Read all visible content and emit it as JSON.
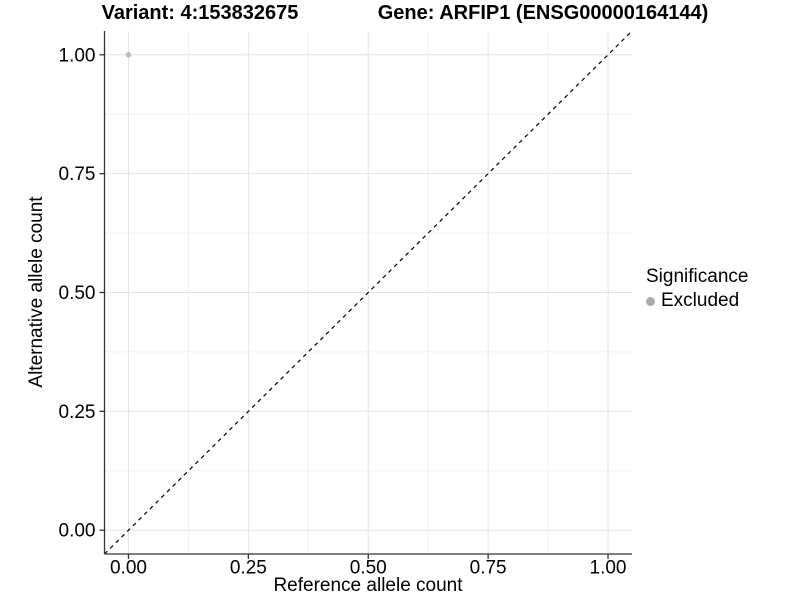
{
  "chart_data": {
    "type": "scatter",
    "title_left": "Variant: 4:153832675",
    "title_right": "Gene: ARFIP1 (ENSG00000164144)",
    "xlabel": "Reference allele count",
    "ylabel": "Alternative allele count",
    "xlim": [
      -0.05,
      1.05
    ],
    "ylim": [
      -0.05,
      1.05
    ],
    "xticks": [
      0,
      0.25,
      0.5,
      0.75,
      1
    ],
    "yticks": [
      0,
      0.25,
      0.5,
      0.75,
      1
    ],
    "xtick_labels": [
      "0.00",
      "0.25",
      "0.50",
      "0.75",
      "1.00"
    ],
    "ytick_labels": [
      "0.00",
      "0.25",
      "0.50",
      "0.75",
      "1.00"
    ],
    "grid": {
      "major": true,
      "minor": true,
      "major_color": "#e4e4e4",
      "minor_color": "#f2f2f2"
    },
    "axis_color": "#333333",
    "reference_line": {
      "type": "identity",
      "linestyle": "dashed",
      "color": "#000000"
    },
    "series": [
      {
        "name": "Excluded",
        "color": "#bdbdbd",
        "points": [
          {
            "x": 0.0,
            "y": 1.0
          }
        ]
      }
    ],
    "legend": {
      "title": "Significance",
      "position": "right",
      "items": [
        {
          "label": "Excluded",
          "color": "#aaaaaa"
        }
      ]
    }
  }
}
